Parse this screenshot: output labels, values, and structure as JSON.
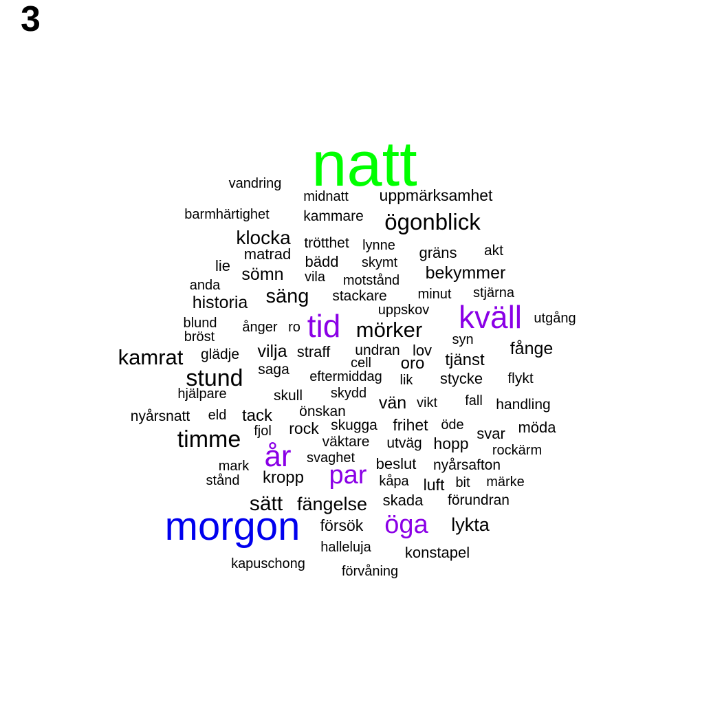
{
  "panel_label": "3",
  "chart_data": {
    "type": "wordcloud",
    "colors": {
      "top": "#00ff00",
      "second": "#0000ee",
      "third": "#8a00e6",
      "rest": "#000000"
    },
    "words": [
      {
        "text": "natt",
        "weight": 100,
        "color": "top"
      },
      {
        "text": "morgon",
        "weight": 70,
        "color": "second"
      },
      {
        "text": "år",
        "weight": 50,
        "color": "third"
      },
      {
        "text": "tid",
        "weight": 50,
        "color": "third"
      },
      {
        "text": "kväll",
        "weight": 50,
        "color": "third"
      },
      {
        "text": "par",
        "weight": 45,
        "color": "third"
      },
      {
        "text": "öga",
        "weight": 45,
        "color": "third"
      },
      {
        "text": "timme",
        "weight": 36,
        "color": "rest"
      },
      {
        "text": "stund",
        "weight": 34,
        "color": "rest"
      },
      {
        "text": "mörker",
        "weight": 32,
        "color": "rest"
      },
      {
        "text": "ögonblick",
        "weight": 32,
        "color": "rest"
      },
      {
        "text": "kamrat",
        "weight": 31,
        "color": "rest"
      },
      {
        "text": "sätt",
        "weight": 30,
        "color": "rest"
      },
      {
        "text": "säng",
        "weight": 29,
        "color": "rest"
      },
      {
        "text": "klocka",
        "weight": 28,
        "color": "rest"
      },
      {
        "text": "lykta",
        "weight": 27,
        "color": "rest"
      },
      {
        "text": "fängelse",
        "weight": 27,
        "color": "rest"
      },
      {
        "text": "historia",
        "weight": 26,
        "color": "rest"
      },
      {
        "text": "vilja",
        "weight": 26,
        "color": "rest"
      },
      {
        "text": "fånge",
        "weight": 26,
        "color": "rest"
      },
      {
        "text": "sömn",
        "weight": 26,
        "color": "rest"
      },
      {
        "text": "bekymmer",
        "weight": 25,
        "color": "rest"
      },
      {
        "text": "vän",
        "weight": 24,
        "color": "rest"
      },
      {
        "text": "tack",
        "weight": 24,
        "color": "rest"
      },
      {
        "text": "kropp",
        "weight": 24,
        "color": "rest"
      },
      {
        "text": "oro",
        "weight": 24,
        "color": "rest"
      },
      {
        "text": "tjänst",
        "weight": 24,
        "color": "rest"
      },
      {
        "text": "frihet",
        "weight": 23,
        "color": "rest"
      },
      {
        "text": "luft",
        "weight": 23,
        "color": "rest"
      },
      {
        "text": "skada",
        "weight": 23,
        "color": "rest"
      },
      {
        "text": "försök",
        "weight": 23,
        "color": "rest"
      },
      {
        "text": "rock",
        "weight": 23,
        "color": "rest"
      },
      {
        "text": "hopp",
        "weight": 23,
        "color": "rest"
      },
      {
        "text": "konstapel",
        "weight": 22,
        "color": "rest"
      },
      {
        "text": "straff",
        "weight": 22,
        "color": "rest"
      },
      {
        "text": "lov",
        "weight": 22,
        "color": "rest"
      },
      {
        "text": "uppmärksamhet",
        "weight": 22,
        "color": "rest"
      },
      {
        "text": "stycke",
        "weight": 22,
        "color": "rest"
      },
      {
        "text": "gräns",
        "weight": 22,
        "color": "rest"
      },
      {
        "text": "bädd",
        "weight": 22,
        "color": "rest"
      },
      {
        "text": "beslut",
        "weight": 22,
        "color": "rest"
      },
      {
        "text": "svar",
        "weight": 22,
        "color": "rest"
      },
      {
        "text": "möda",
        "weight": 22,
        "color": "rest"
      },
      {
        "text": "akt",
        "weight": 21,
        "color": "rest"
      },
      {
        "text": "stackare",
        "weight": 21,
        "color": "rest"
      },
      {
        "text": "lie",
        "weight": 21,
        "color": "rest"
      },
      {
        "text": "matrad",
        "weight": 21,
        "color": "rest"
      },
      {
        "text": "kammare",
        "weight": 21,
        "color": "rest"
      },
      {
        "text": "glädje",
        "weight": 21,
        "color": "rest"
      },
      {
        "text": "undran",
        "weight": 21,
        "color": "rest"
      },
      {
        "text": "saga",
        "weight": 21,
        "color": "rest"
      },
      {
        "text": "flykt",
        "weight": 21,
        "color": "rest"
      },
      {
        "text": "skugga",
        "weight": 21,
        "color": "rest"
      },
      {
        "text": "utväg",
        "weight": 21,
        "color": "rest"
      },
      {
        "text": "handling",
        "weight": 21,
        "color": "rest"
      },
      {
        "text": "fjol",
        "weight": 21,
        "color": "rest"
      },
      {
        "text": "önskan",
        "weight": 21,
        "color": "rest"
      },
      {
        "text": "skull",
        "weight": 21,
        "color": "rest"
      },
      {
        "text": "väktare",
        "weight": 21,
        "color": "rest"
      },
      {
        "text": "nyårsafton",
        "weight": 21,
        "color": "rest"
      },
      {
        "text": "förundran",
        "weight": 21,
        "color": "rest"
      },
      {
        "text": "trötthet",
        "weight": 20,
        "color": "rest"
      },
      {
        "text": "midnatt",
        "weight": 20,
        "color": "rest"
      },
      {
        "text": "vandring",
        "weight": 20,
        "color": "rest"
      },
      {
        "text": "barmhärtighet",
        "weight": 20,
        "color": "rest"
      },
      {
        "text": "lynne",
        "weight": 20,
        "color": "rest"
      },
      {
        "text": "motstånd",
        "weight": 20,
        "color": "rest"
      },
      {
        "text": "minut",
        "weight": 20,
        "color": "rest"
      },
      {
        "text": "stjärna",
        "weight": 20,
        "color": "rest"
      },
      {
        "text": "vila",
        "weight": 20,
        "color": "rest"
      },
      {
        "text": "skymt",
        "weight": 20,
        "color": "rest"
      },
      {
        "text": "anda",
        "weight": 20,
        "color": "rest"
      },
      {
        "text": "uppskov",
        "weight": 20,
        "color": "rest"
      },
      {
        "text": "utgång",
        "weight": 20,
        "color": "rest"
      },
      {
        "text": "blund",
        "weight": 20,
        "color": "rest"
      },
      {
        "text": "bröst",
        "weight": 20,
        "color": "rest"
      },
      {
        "text": "ånger",
        "weight": 20,
        "color": "rest"
      },
      {
        "text": "ro",
        "weight": 20,
        "color": "rest"
      },
      {
        "text": "syn",
        "weight": 20,
        "color": "rest"
      },
      {
        "text": "cell",
        "weight": 20,
        "color": "rest"
      },
      {
        "text": "eftermiddag",
        "weight": 20,
        "color": "rest"
      },
      {
        "text": "lik",
        "weight": 20,
        "color": "rest"
      },
      {
        "text": "hjälpare",
        "weight": 20,
        "color": "rest"
      },
      {
        "text": "skydd",
        "weight": 20,
        "color": "rest"
      },
      {
        "text": "vikt",
        "weight": 20,
        "color": "rest"
      },
      {
        "text": "fall",
        "weight": 20,
        "color": "rest"
      },
      {
        "text": "nyårsnatt",
        "weight": 20,
        "color": "rest"
      },
      {
        "text": "eld",
        "weight": 20,
        "color": "rest"
      },
      {
        "text": "öde",
        "weight": 20,
        "color": "rest"
      },
      {
        "text": "rockärm",
        "weight": 20,
        "color": "rest"
      },
      {
        "text": "mark",
        "weight": 20,
        "color": "rest"
      },
      {
        "text": "svaghet",
        "weight": 20,
        "color": "rest"
      },
      {
        "text": "stånd",
        "weight": 20,
        "color": "rest"
      },
      {
        "text": "kåpa",
        "weight": 20,
        "color": "rest"
      },
      {
        "text": "bit",
        "weight": 20,
        "color": "rest"
      },
      {
        "text": "märke",
        "weight": 20,
        "color": "rest"
      },
      {
        "text": "halleluja",
        "weight": 20,
        "color": "rest"
      },
      {
        "text": "kapuschong",
        "weight": 20,
        "color": "rest"
      },
      {
        "text": "förvåning",
        "weight": 20,
        "color": "rest"
      }
    ]
  }
}
